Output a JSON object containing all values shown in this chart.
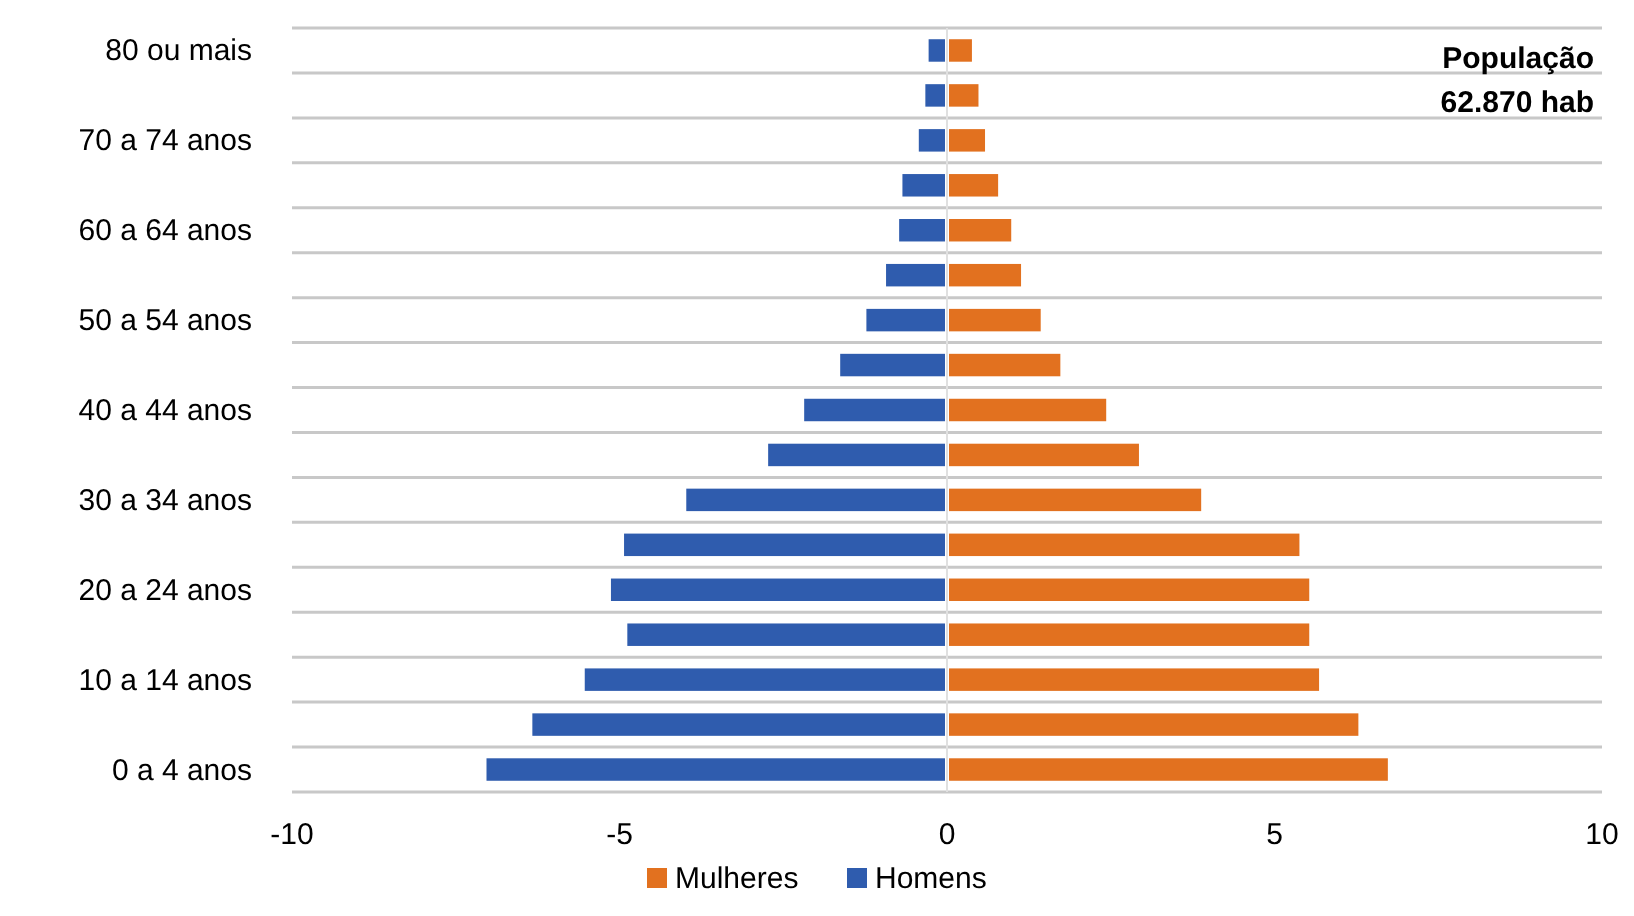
{
  "chart_data": {
    "type": "bar",
    "orientation": "horizontal",
    "categories": [
      "80 ou mais",
      null,
      "70 a 74 anos",
      null,
      "60 a 64 anos",
      null,
      "50 a 54 anos",
      null,
      "40 a 44 anos",
      null,
      "30 a 34 anos",
      null,
      "20 a 24 anos",
      null,
      "10 a 14 anos",
      null,
      "0 a 4 anos"
    ],
    "series": [
      {
        "name": "Mulheres",
        "color": "#e2711f",
        "values": [
          0.35,
          0.45,
          0.55,
          0.75,
          0.95,
          1.1,
          1.4,
          1.7,
          2.4,
          2.9,
          3.85,
          5.35,
          5.5,
          5.5,
          5.65,
          6.25,
          6.7
        ]
      },
      {
        "name": "Homens",
        "color": "#2f5cae",
        "values": [
          -0.25,
          -0.3,
          -0.4,
          -0.65,
          -0.7,
          -0.9,
          -1.2,
          -1.6,
          -2.15,
          -2.7,
          -3.95,
          -4.9,
          -5.1,
          -4.85,
          -5.5,
          -6.3,
          -7.0
        ]
      }
    ],
    "stacked": true,
    "xlim": [
      -10,
      10
    ],
    "xticks": [
      -10,
      -5,
      0,
      5,
      10
    ],
    "grid": "y",
    "legend": "bottom",
    "annotations": [
      "População",
      "62.870 hab"
    ]
  }
}
